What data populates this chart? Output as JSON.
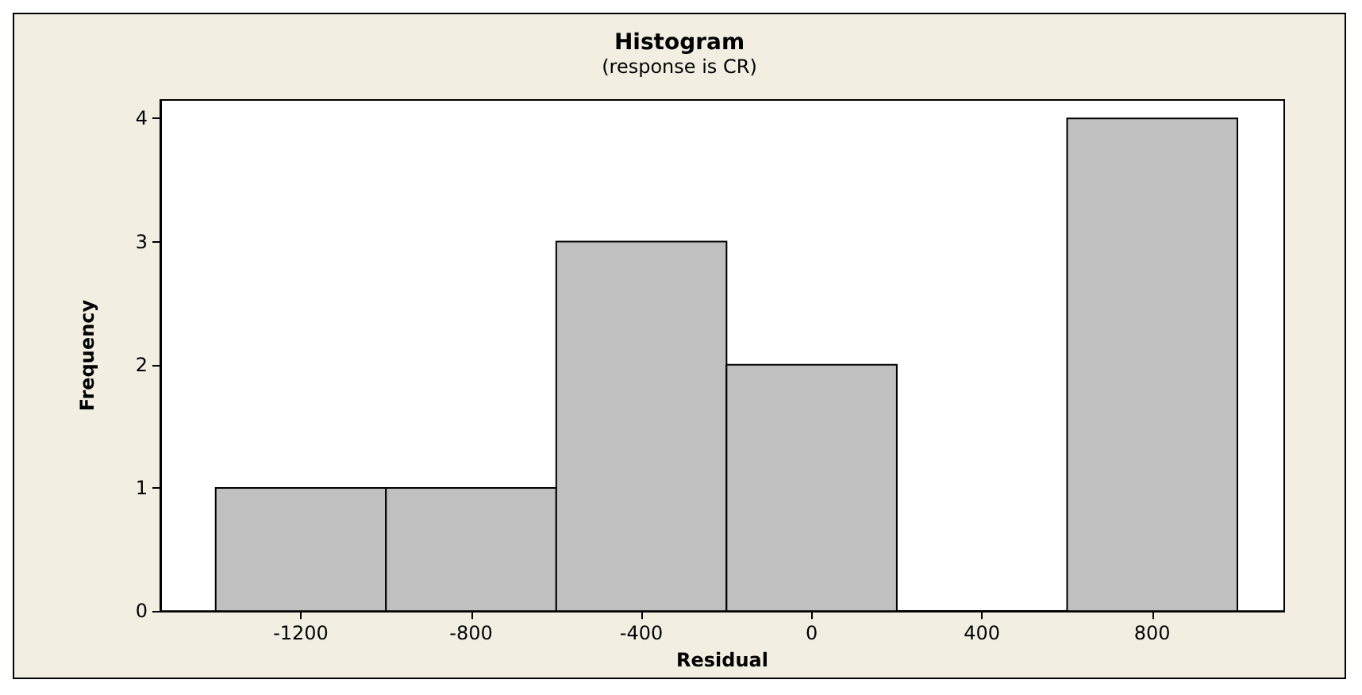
{
  "chart_data": {
    "type": "histogram",
    "title": "Histogram",
    "subtitle": "(response is CR)",
    "xlabel": "Residual",
    "ylabel": "Frequency",
    "bins": [
      -1400,
      -1000,
      -600,
      -200,
      200,
      600,
      1000
    ],
    "values": [
      1,
      1,
      3,
      2,
      0,
      4
    ],
    "color": "#c0c0c0",
    "xlim": [
      -1530,
      1110
    ],
    "xticks": [
      -1200,
      -800,
      -400,
      0,
      400,
      800
    ],
    "ylim": [
      0,
      4.15
    ],
    "yticks": [
      0,
      1,
      2,
      3,
      4
    ],
    "grid": false
  }
}
